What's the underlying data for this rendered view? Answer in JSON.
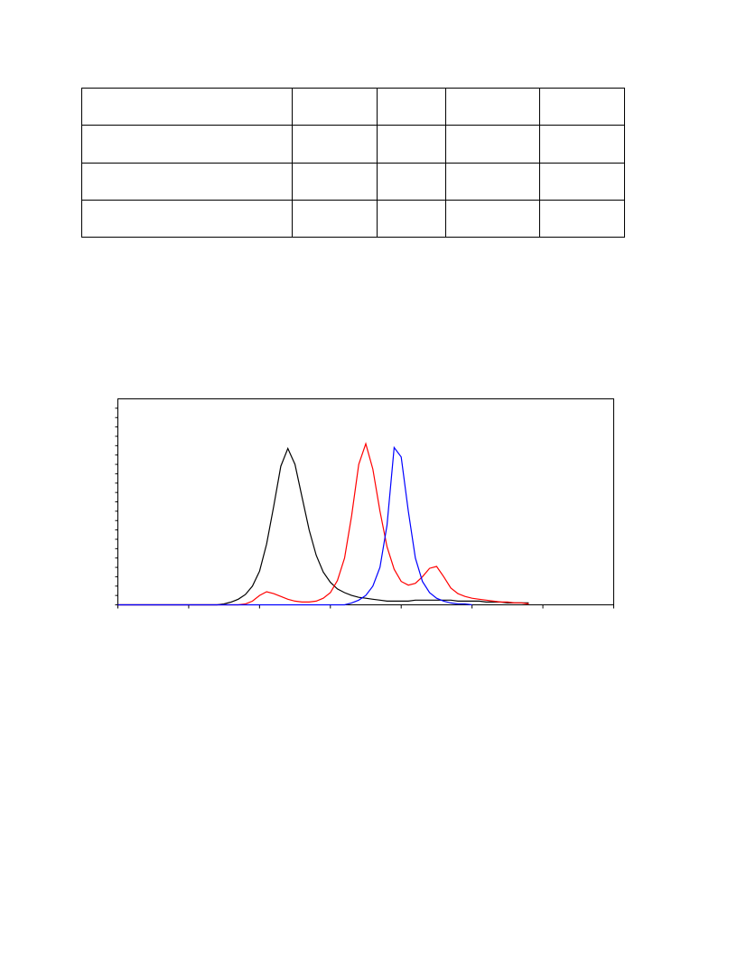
{
  "chart_data": {
    "type": "line",
    "x": [
      0,
      0.1,
      0.2,
      0.3,
      0.4,
      0.5,
      0.6,
      0.7,
      0.8,
      0.9,
      1,
      1.1,
      1.2,
      1.3,
      1.4,
      1.5,
      1.6,
      1.7,
      1.8,
      1.9,
      2,
      2.1,
      2.2,
      2.3,
      2.4,
      2.5,
      2.6,
      2.7,
      2.8,
      2.9,
      3,
      3.1,
      3.2,
      3.3,
      3.4,
      3.5,
      3.6,
      3.7,
      3.8,
      3.9,
      4,
      4.1,
      4.2,
      4.3,
      4.4,
      4.5,
      4.6,
      4.7,
      4.8,
      4.9,
      5,
      5.1,
      5.2,
      5.3,
      5.4,
      5.5,
      5.6,
      5.7,
      5.8
    ],
    "series": [
      {
        "color": "#000000",
        "values": [
          0,
          0,
          0,
          0,
          0,
          0,
          0,
          0,
          0,
          0,
          0,
          0,
          0,
          0,
          0,
          0.1,
          0.3,
          0.6,
          1.1,
          2.0,
          3.6,
          6.5,
          10.5,
          14.8,
          16.7,
          15.0,
          11.5,
          8.0,
          5.3,
          3.5,
          2.4,
          1.7,
          1.3,
          1.0,
          0.8,
          0.7,
          0.6,
          0.5,
          0.4,
          0.4,
          0.4,
          0.4,
          0.5,
          0.5,
          0.5,
          0.5,
          0.5,
          0.5,
          0.4,
          0.4,
          0.4,
          0.4,
          0.3,
          0.3,
          0.3,
          0.2,
          0.2,
          0.2,
          0.2
        ]
      },
      {
        "color": "#ff0000",
        "values": [
          0,
          0,
          0,
          0,
          0,
          0,
          0,
          0,
          0,
          0,
          0,
          0,
          0,
          0,
          0,
          0,
          0,
          0,
          0.1,
          0.4,
          1.0,
          1.4,
          1.2,
          0.9,
          0.6,
          0.4,
          0.3,
          0.3,
          0.4,
          0.7,
          1.3,
          2.6,
          5.0,
          9.5,
          15.0,
          17.2,
          14.5,
          10.0,
          6.2,
          3.8,
          2.5,
          2.1,
          2.3,
          3.0,
          3.9,
          4.1,
          3.0,
          1.8,
          1.2,
          0.9,
          0.7,
          0.6,
          0.5,
          0.4,
          0.3,
          0.3,
          0.2,
          0.2,
          0.1
        ]
      },
      {
        "color": "#0000ff",
        "values": [
          0,
          0,
          0,
          0,
          0,
          0,
          0,
          0,
          0,
          0,
          0,
          0,
          0,
          0,
          0,
          0,
          0,
          0,
          0,
          0,
          0,
          0,
          0,
          0,
          0,
          0,
          0,
          0,
          0,
          0,
          0,
          0,
          0,
          0.2,
          0.5,
          1.0,
          2.0,
          4.0,
          8.5,
          16.8,
          15.8,
          10.0,
          5.0,
          2.5,
          1.3,
          0.7,
          0.4,
          0.2,
          0.1,
          0.1,
          0,
          null,
          null,
          null,
          null,
          null,
          null,
          null,
          null
        ]
      }
    ],
    "xlim": [
      0,
      7
    ],
    "xticks": [
      0,
      1,
      2,
      3,
      4,
      5,
      6,
      7
    ],
    "ylim": [
      0,
      22
    ],
    "yticks": [
      0,
      1,
      2,
      3,
      4,
      5,
      6,
      7,
      8,
      9,
      10,
      11,
      12,
      13,
      14,
      15,
      16,
      17,
      18,
      19,
      20,
      21
    ]
  }
}
